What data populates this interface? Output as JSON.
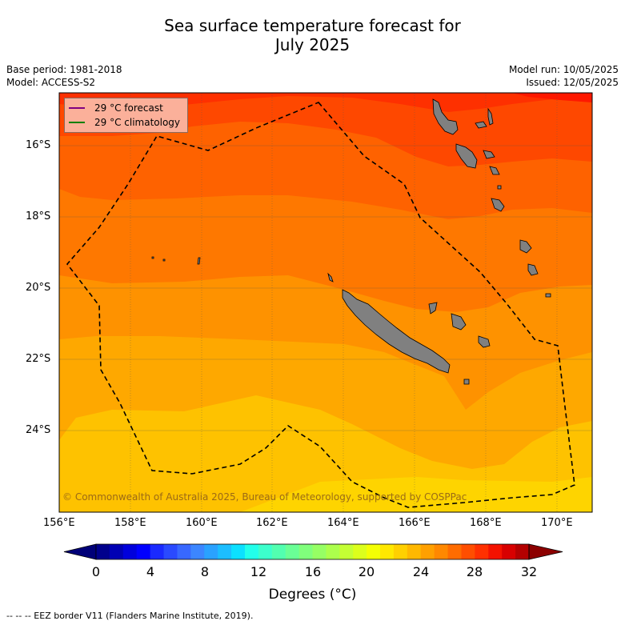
{
  "title_line1": "Sea surface temperature forecast for",
  "title_line2": "July 2025",
  "base_period": "Base period: 1981-2018",
  "model": "Model: ACCESS-S2",
  "model_run": "Model run: 10/05/2025",
  "issued": "Issued: 12/05/2025",
  "legend": {
    "forecast_label": "29 °C  forecast",
    "forecast_color": "#800080",
    "climatology_label": "29 °C  climatology",
    "climatology_color": "#008000"
  },
  "map_extent": {
    "lon": [
      156,
      171
    ],
    "lat": [
      -26.2,
      -14.6
    ]
  },
  "lat_ticks": [
    {
      "label": "16°S",
      "value": -16
    },
    {
      "label": "18°S",
      "value": -18
    },
    {
      "label": "20°S",
      "value": -20
    },
    {
      "label": "22°S",
      "value": -22
    },
    {
      "label": "24°S",
      "value": -24
    }
  ],
  "lon_ticks": [
    {
      "label": "156°E",
      "value": 156
    },
    {
      "label": "158°E",
      "value": 158
    },
    {
      "label": "160°E",
      "value": 160
    },
    {
      "label": "162°E",
      "value": 162
    },
    {
      "label": "164°E",
      "value": 164
    },
    {
      "label": "166°E",
      "value": 166
    },
    {
      "label": "168°E",
      "value": 168
    },
    {
      "label": "170°E",
      "value": 170
    }
  ],
  "temperature_bands_degC": [
    {
      "range": "22-23",
      "color": "#fed400"
    },
    {
      "range": "23-24",
      "color": "#fec200"
    },
    {
      "range": "24-25",
      "color": "#fea800"
    },
    {
      "range": "25-26",
      "color": "#fe9200"
    },
    {
      "range": "26-27",
      "color": "#fe7800"
    },
    {
      "range": "27-28",
      "color": "#fe6200"
    },
    {
      "range": "28-29",
      "color": "#fe4800"
    },
    {
      "range": "29-30",
      "color": "#fe3000"
    }
  ],
  "colorbar": {
    "labels": [
      "0",
      "4",
      "8",
      "12",
      "16",
      "20",
      "24",
      "28",
      "32"
    ],
    "min": 0,
    "max": 32,
    "step": 1,
    "colors": [
      "#00008c",
      "#0000b4",
      "#0000dc",
      "#0000ff",
      "#1a2aff",
      "#2a4aff",
      "#3868ff",
      "#3c86ff",
      "#2aa2ff",
      "#1cbeff",
      "#0ce0ff",
      "#22ffea",
      "#3cffcc",
      "#52ffb0",
      "#6aff96",
      "#80ff7c",
      "#96ff64",
      "#acff4c",
      "#c4ff34",
      "#dcff1c",
      "#f4ff04",
      "#ffe800",
      "#ffd000",
      "#ffb800",
      "#ffa000",
      "#ff8800",
      "#ff6c00",
      "#ff4e00",
      "#ff3000",
      "#f41200",
      "#d80000",
      "#b40000"
    ],
    "under_color": "#000078",
    "over_color": "#8c0000",
    "title": "Degrees (°C)"
  },
  "copyright": "© Commonwealth of Australia 2025, Bureau of Meteorology, supported by COSPPac",
  "footer": "--  --  -- EEZ border V11 (Flanders Marine Institute, 2019)."
}
